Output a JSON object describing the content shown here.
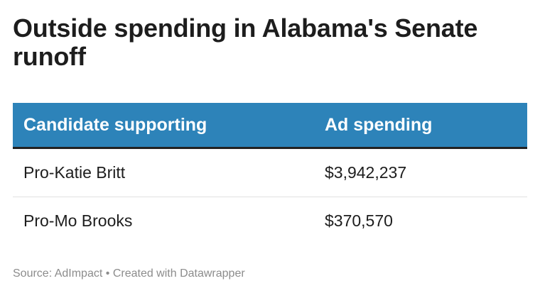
{
  "chart_data": {
    "type": "table",
    "title": "Outside spending in Alabama's Senate runoff",
    "columns": [
      "Candidate supporting",
      "Ad spending"
    ],
    "rows": [
      {
        "candidate": "Pro-Katie Britt",
        "spending": "$3,942,237",
        "value": 3942237
      },
      {
        "candidate": "Pro-Mo Brooks",
        "spending": "$370,570",
        "value": 370570
      }
    ],
    "header_color": "#2d83b9"
  },
  "footer": {
    "source": "Source: AdImpact",
    "separator": "•",
    "credit": "Created with Datawrapper"
  }
}
